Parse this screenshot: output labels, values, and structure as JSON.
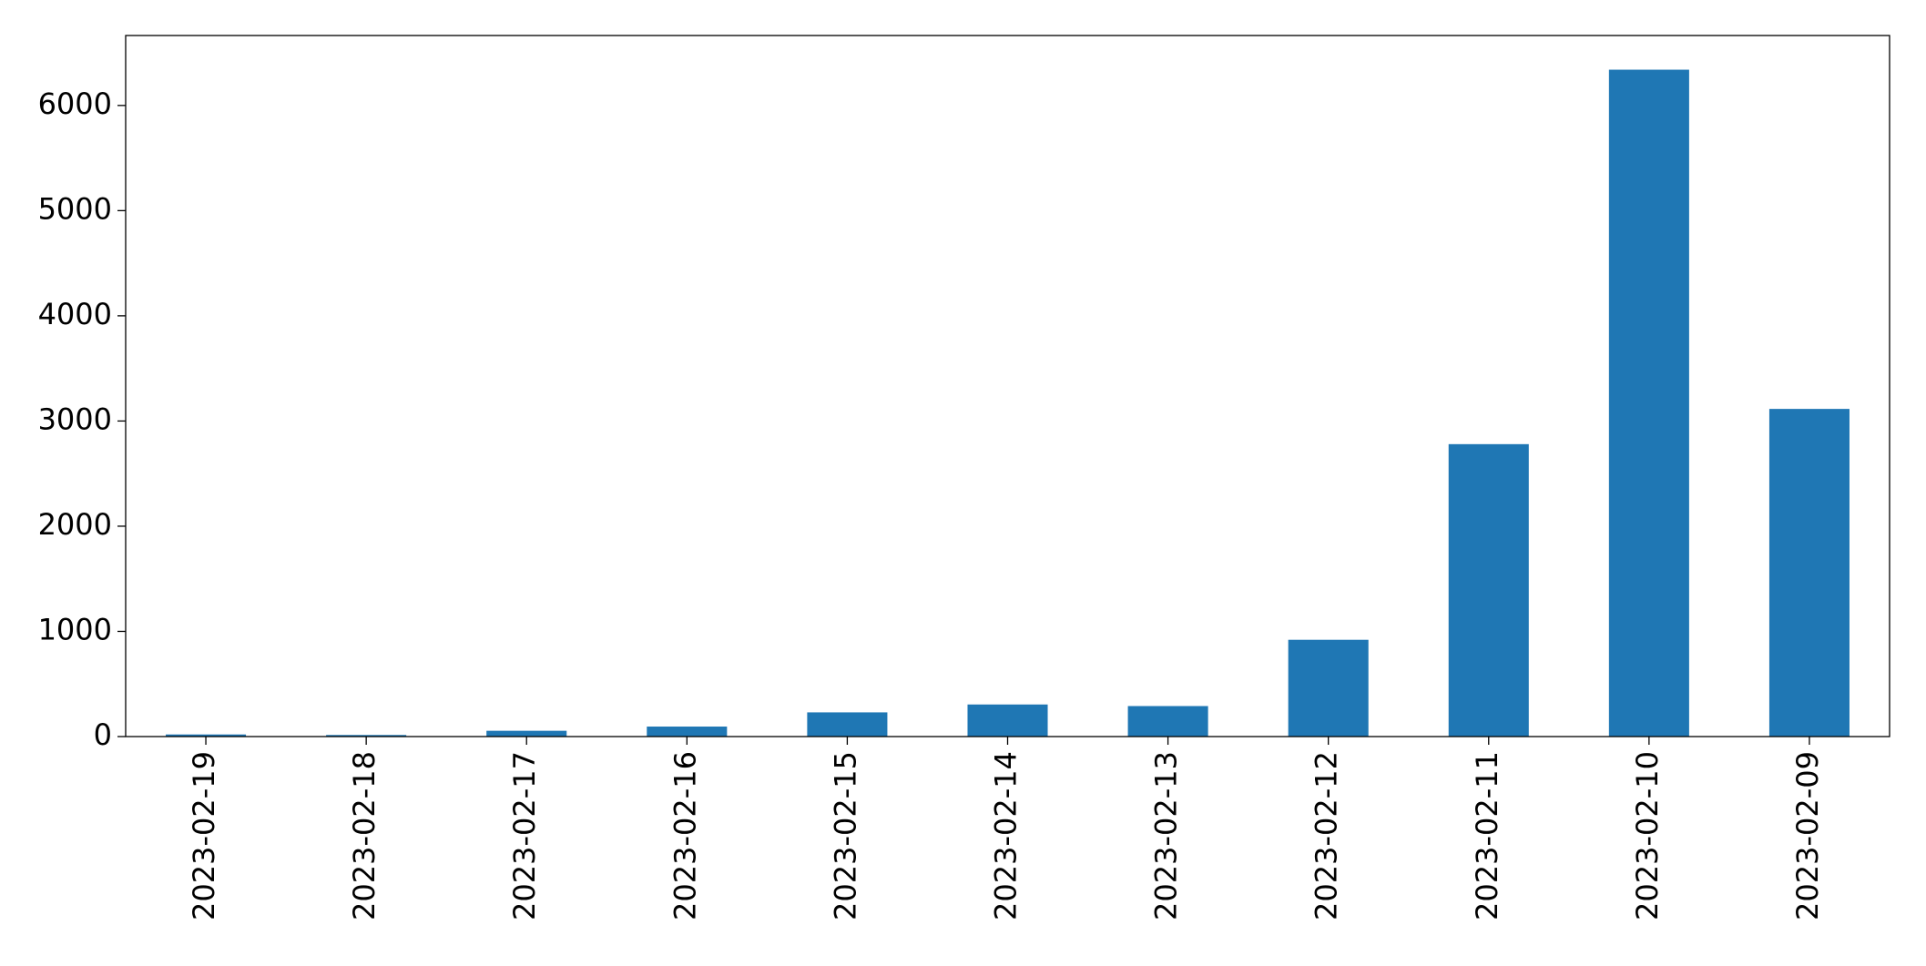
{
  "chart_data": {
    "type": "bar",
    "categories": [
      "2023-02-19",
      "2023-02-18",
      "2023-02-17",
      "2023-02-16",
      "2023-02-15",
      "2023-02-14",
      "2023-02-13",
      "2023-02-12",
      "2023-02-11",
      "2023-02-10",
      "2023-02-09"
    ],
    "values": [
      20,
      15,
      55,
      95,
      230,
      305,
      290,
      920,
      2780,
      6340,
      3115
    ],
    "color": "#1f77b4",
    "ylim": [
      0,
      6665
    ],
    "yticks": [
      0,
      1000,
      2000,
      3000,
      4000,
      5000,
      6000
    ],
    "grid": false
  }
}
